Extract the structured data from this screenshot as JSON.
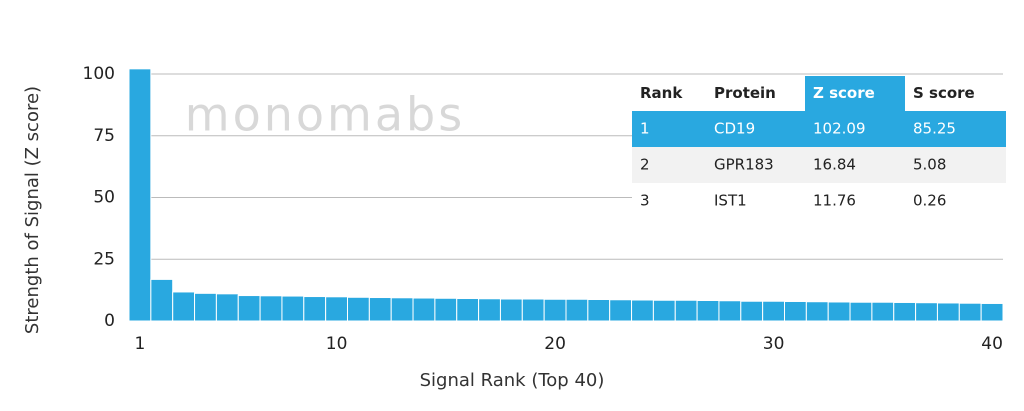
{
  "chart_data": {
    "type": "bar",
    "watermark": "monomabs",
    "x_label": "Signal Rank (Top 40)",
    "y_label": "Strength of Signal (Z score)",
    "x": [
      1,
      2,
      3,
      4,
      5,
      6,
      7,
      8,
      9,
      10,
      11,
      12,
      13,
      14,
      15,
      16,
      17,
      18,
      19,
      20,
      21,
      22,
      23,
      24,
      25,
      26,
      27,
      28,
      29,
      30,
      31,
      32,
      33,
      34,
      35,
      36,
      37,
      38,
      39,
      40
    ],
    "values": [
      102.09,
      16.84,
      11.76,
      11.2,
      11.0,
      10.3,
      10.2,
      10.1,
      9.9,
      9.8,
      9.6,
      9.5,
      9.4,
      9.3,
      9.2,
      9.1,
      9.0,
      8.9,
      8.9,
      8.8,
      8.8,
      8.7,
      8.6,
      8.5,
      8.4,
      8.4,
      8.3,
      8.2,
      8.0,
      8.0,
      7.9,
      7.8,
      7.7,
      7.6,
      7.6,
      7.5,
      7.4,
      7.3,
      7.2,
      7.1
    ],
    "color": "#29a8e0",
    "xlim": [
      0.5,
      40.5
    ],
    "xticks": [
      1,
      10,
      20,
      30,
      40
    ],
    "ylim": [
      0,
      100
    ],
    "yticks": [
      0,
      25,
      50,
      75,
      100
    ],
    "grid": true
  },
  "table": {
    "columns": [
      "Rank",
      "Protein",
      "Z score",
      "S score"
    ],
    "rows": [
      [
        1,
        "CD19",
        102.09,
        85.25
      ],
      [
        2,
        "GPR183",
        16.84,
        5.08
      ],
      [
        3,
        "IST1",
        11.76,
        0.26
      ]
    ]
  }
}
